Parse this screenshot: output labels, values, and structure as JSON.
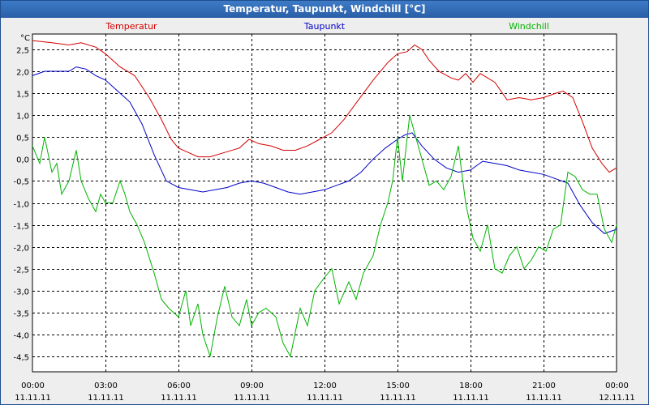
{
  "chart_data": {
    "type": "line",
    "title": "Temperatur, Taupunkt, Windchill [°C]",
    "ylabel": "°C",
    "ylim": [
      -4.85,
      2.85
    ],
    "xlim_hours": [
      0,
      24
    ],
    "grid": true,
    "y_ticks": [
      2.5,
      2.0,
      1.5,
      1.0,
      0.5,
      0.0,
      -0.5,
      -1.0,
      -1.5,
      -2.0,
      -2.5,
      -3.0,
      -3.5,
      -4.0,
      -4.5
    ],
    "y_tick_labels": [
      "2,5",
      "2,0",
      "1,5",
      "1,0",
      "0,5",
      "0,0",
      "-0,5",
      "-1,0",
      "-1,5",
      "-2,0",
      "-2,5",
      "-3,0",
      "-3,5",
      "-4,0",
      "-4,5"
    ],
    "x_ticks": [
      {
        "hour": 0,
        "time": "00:00",
        "date": "11.11.11"
      },
      {
        "hour": 3,
        "time": "03:00",
        "date": "11.11.11"
      },
      {
        "hour": 6,
        "time": "06:00",
        "date": "11.11.11"
      },
      {
        "hour": 9,
        "time": "09:00",
        "date": "11.11.11"
      },
      {
        "hour": 12,
        "time": "12:00",
        "date": "11.11.11"
      },
      {
        "hour": 15,
        "time": "15:00",
        "date": "11.11.11"
      },
      {
        "hour": 18,
        "time": "18:00",
        "date": "11.11.11"
      },
      {
        "hour": 21,
        "time": "21:00",
        "date": "11.11.11"
      },
      {
        "hour": 24,
        "time": "00:00",
        "date": "12.11.11"
      }
    ],
    "series": [
      {
        "name": "Temperatur",
        "color": "#d40000",
        "x": [
          0,
          0.8,
          1.5,
          2.0,
          2.6,
          3.0,
          3.6,
          4.2,
          4.8,
          5.3,
          5.7,
          6.0,
          6.4,
          6.8,
          7.3,
          7.9,
          8.5,
          8.9,
          9.3,
          9.8,
          10.3,
          10.8,
          11.3,
          11.8,
          12.3,
          12.8,
          13.4,
          14.0,
          14.6,
          15.0,
          15.4,
          15.7,
          16.0,
          16.3,
          16.7,
          17.2,
          17.5,
          17.8,
          18.1,
          18.4,
          18.7,
          19.0,
          19.5,
          20.0,
          20.5,
          21.0,
          21.5,
          21.8,
          22.2,
          22.6,
          23.0,
          23.4,
          23.7,
          24.0
        ],
        "values": [
          2.7,
          2.65,
          2.6,
          2.65,
          2.55,
          2.4,
          2.1,
          1.9,
          1.4,
          0.9,
          0.45,
          0.25,
          0.15,
          0.05,
          0.05,
          0.15,
          0.25,
          0.45,
          0.35,
          0.3,
          0.2,
          0.2,
          0.3,
          0.45,
          0.6,
          0.9,
          1.35,
          1.8,
          2.2,
          2.4,
          2.45,
          2.6,
          2.5,
          2.25,
          2.0,
          1.85,
          1.8,
          1.95,
          1.75,
          1.95,
          1.85,
          1.75,
          1.35,
          1.4,
          1.35,
          1.4,
          1.5,
          1.55,
          1.4,
          0.85,
          0.25,
          -0.1,
          -0.3,
          -0.2
        ]
      },
      {
        "name": "Taupunkt",
        "color": "#0000c8",
        "x": [
          0,
          0.5,
          1.0,
          1.5,
          1.8,
          2.2,
          2.6,
          3.0,
          3.5,
          4.0,
          4.5,
          5.0,
          5.5,
          6.0,
          6.5,
          7.0,
          7.5,
          8.0,
          8.5,
          9.0,
          9.5,
          10.0,
          10.5,
          11.0,
          11.5,
          12.0,
          12.5,
          13.0,
          13.5,
          14.0,
          14.5,
          15.0,
          15.3,
          15.6,
          16.0,
          16.5,
          17.0,
          17.5,
          18.0,
          18.5,
          19.0,
          19.5,
          20.0,
          20.5,
          21.0,
          21.5,
          22.0,
          22.5,
          23.0,
          23.5,
          24.0
        ],
        "values": [
          1.9,
          2.0,
          2.0,
          2.0,
          2.1,
          2.05,
          1.9,
          1.8,
          1.55,
          1.3,
          0.8,
          0.1,
          -0.5,
          -0.65,
          -0.7,
          -0.75,
          -0.7,
          -0.65,
          -0.55,
          -0.5,
          -0.55,
          -0.65,
          -0.75,
          -0.8,
          -0.75,
          -0.7,
          -0.6,
          -0.5,
          -0.3,
          0.0,
          0.25,
          0.45,
          0.55,
          0.6,
          0.3,
          0.0,
          -0.2,
          -0.3,
          -0.25,
          -0.05,
          -0.1,
          -0.15,
          -0.25,
          -0.3,
          -0.35,
          -0.45,
          -0.55,
          -1.05,
          -1.45,
          -1.7,
          -1.6
        ]
      },
      {
        "name": "Windchill",
        "color": "#00b400",
        "x": [
          0,
          0.3,
          0.5,
          0.8,
          1.0,
          1.2,
          1.5,
          1.8,
          2.0,
          2.3,
          2.6,
          2.8,
          3.0,
          3.3,
          3.6,
          3.8,
          4.0,
          4.3,
          4.6,
          5.0,
          5.3,
          5.6,
          6.0,
          6.3,
          6.5,
          6.8,
          7.0,
          7.3,
          7.6,
          7.9,
          8.2,
          8.5,
          8.8,
          9.0,
          9.3,
          9.6,
          10.0,
          10.3,
          10.6,
          11.0,
          11.3,
          11.6,
          12.0,
          12.3,
          12.6,
          13.0,
          13.3,
          13.6,
          14.0,
          14.3,
          14.6,
          14.8,
          15.0,
          15.2,
          15.5,
          15.8,
          16.0,
          16.3,
          16.6,
          16.9,
          17.2,
          17.5,
          17.8,
          18.1,
          18.4,
          18.7,
          19.0,
          19.3,
          19.6,
          19.9,
          20.2,
          20.5,
          20.8,
          21.1,
          21.4,
          21.7,
          22.0,
          22.3,
          22.6,
          22.9,
          23.2,
          23.5,
          23.8,
          24.0
        ],
        "values": [
          0.3,
          -0.1,
          0.5,
          -0.3,
          -0.1,
          -0.8,
          -0.5,
          0.2,
          -0.5,
          -0.9,
          -1.2,
          -0.8,
          -1.0,
          -1.0,
          -0.5,
          -0.8,
          -1.2,
          -1.5,
          -1.9,
          -2.6,
          -3.2,
          -3.4,
          -3.6,
          -3.0,
          -3.8,
          -3.3,
          -4.0,
          -4.5,
          -3.6,
          -2.9,
          -3.6,
          -3.8,
          -3.2,
          -3.8,
          -3.5,
          -3.4,
          -3.6,
          -4.2,
          -4.5,
          -3.4,
          -3.8,
          -3.0,
          -2.7,
          -2.5,
          -3.3,
          -2.8,
          -3.2,
          -2.6,
          -2.2,
          -1.5,
          -1.0,
          -0.5,
          0.5,
          -0.5,
          1.0,
          0.4,
          0.0,
          -0.6,
          -0.5,
          -0.7,
          -0.4,
          0.3,
          -1.0,
          -1.8,
          -2.1,
          -1.5,
          -2.5,
          -2.6,
          -2.2,
          -2.0,
          -2.5,
          -2.3,
          -2.0,
          -2.1,
          -1.6,
          -1.5,
          -0.3,
          -0.4,
          -0.7,
          -0.8,
          -0.8,
          -1.6,
          -1.9,
          -1.5
        ]
      }
    ]
  }
}
